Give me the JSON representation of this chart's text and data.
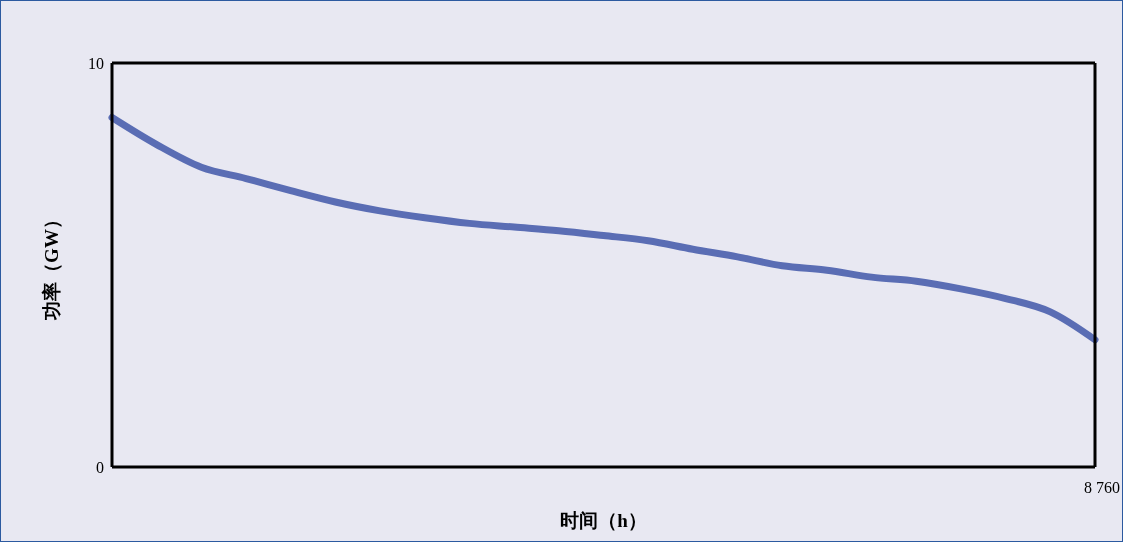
{
  "chart_data": {
    "type": "line",
    "xlabel": "时间（h）",
    "ylabel": "功率（GW）",
    "categories": [
      null,
      null,
      null,
      null,
      null,
      null,
      null,
      null,
      null,
      null,
      null,
      null,
      null,
      null,
      null,
      null,
      null,
      null,
      null,
      null,
      null,
      null,
      null
    ],
    "series": [
      {
        "color": "#5a6db4",
        "values": [
          8.65,
          7.98,
          7.42,
          7.14,
          6.84,
          6.56,
          6.34,
          6.17,
          6.03,
          5.94,
          5.85,
          5.73,
          5.6,
          5.39,
          5.2,
          4.98,
          4.87,
          4.7,
          4.6,
          4.41,
          4.17,
          3.84,
          3.15
        ]
      }
    ],
    "annotations": [
      "8 760"
    ],
    "ylim": [
      0,
      10
    ],
    "yticks": [
      0,
      10
    ],
    "marker": "none",
    "line_style": "solid"
  }
}
